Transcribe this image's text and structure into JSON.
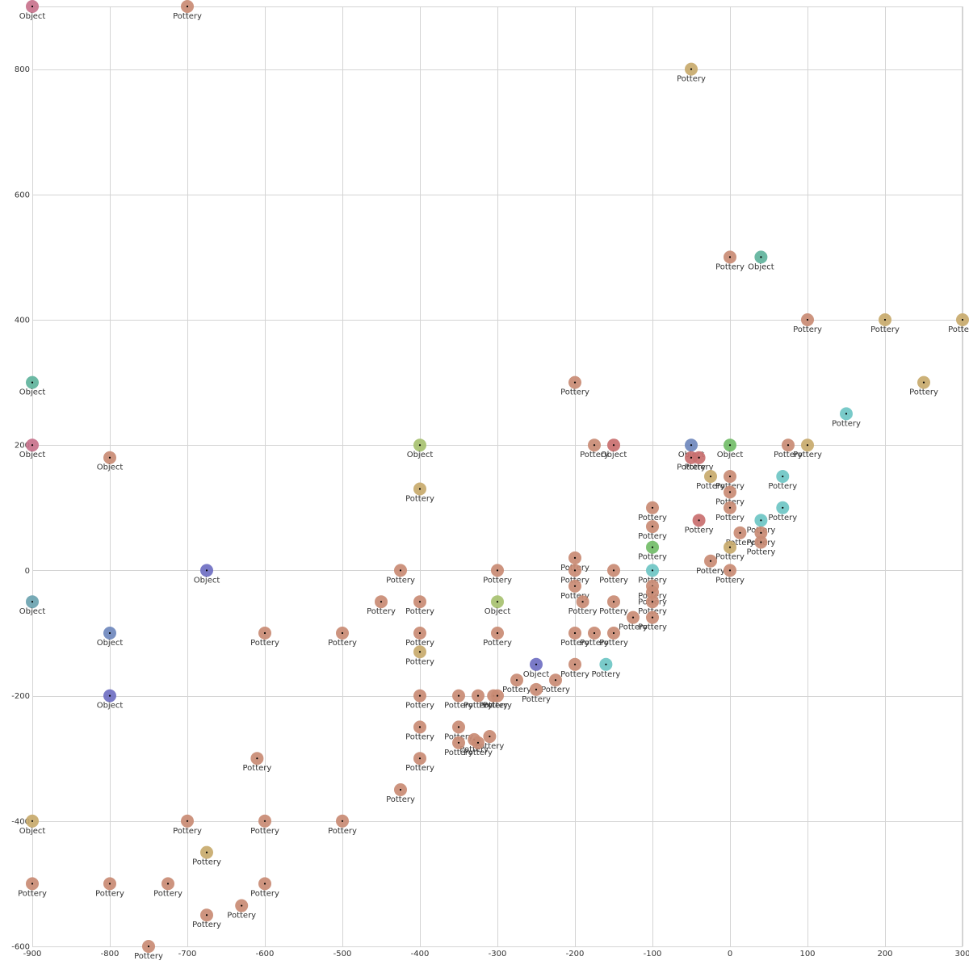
{
  "chart_data": {
    "type": "scatter",
    "title": "",
    "xlabel": "",
    "ylabel": "",
    "xlim": [
      -900,
      300
    ],
    "ylim": [
      -600,
      900
    ],
    "grid": true,
    "x_ticks": [
      -900,
      -800,
      -700,
      -600,
      -500,
      -400,
      -300,
      -200,
      -100,
      0,
      100,
      200,
      300
    ],
    "y_ticks": [
      -600,
      -400,
      -200,
      0,
      200,
      400,
      600,
      800
    ],
    "colors": {
      "pottery_terracotta": "#c98b74",
      "pottery_ochre": "#c8aa6c",
      "pottery_red": "#c96f6f",
      "object_teal": "#5fb39c",
      "object_blue": "#6f88bd",
      "object_violet": "#6f6fc2",
      "object_rose": "#c8728c",
      "object_green": "#72bd68",
      "object_lime": "#a7c170",
      "object_cyan": "#6ec6c4"
    },
    "points": [
      {
        "x": -900,
        "y": 900,
        "label": "Object",
        "color": "#c8728c"
      },
      {
        "x": -700,
        "y": 900,
        "label": "Pottery",
        "color": "#c98b74"
      },
      {
        "x": -50,
        "y": 800,
        "label": "Pottery",
        "color": "#c8aa6c"
      },
      {
        "x": 0,
        "y": 500,
        "label": "Pottery",
        "color": "#c98b74"
      },
      {
        "x": 40,
        "y": 500,
        "label": "Object",
        "color": "#5fb39c"
      },
      {
        "x": 100,
        "y": 400,
        "label": "Pottery",
        "color": "#c98b74"
      },
      {
        "x": 200,
        "y": 400,
        "label": "Pottery",
        "color": "#c8aa6c"
      },
      {
        "x": 300,
        "y": 400,
        "label": "Pottery",
        "color": "#c8aa6c"
      },
      {
        "x": -900,
        "y": 300,
        "label": "Object",
        "color": "#5fb39c"
      },
      {
        "x": -200,
        "y": 300,
        "label": "Pottery",
        "color": "#c98b74"
      },
      {
        "x": 250,
        "y": 300,
        "label": "Pottery",
        "color": "#c8aa6c"
      },
      {
        "x": 150,
        "y": 250,
        "label": "Pottery",
        "color": "#6ec6c4"
      },
      {
        "x": -900,
        "y": 200,
        "label": "Object",
        "color": "#c8728c"
      },
      {
        "x": -800,
        "y": 180,
        "label": "Object",
        "color": "#c98b74"
      },
      {
        "x": -400,
        "y": 200,
        "label": "Object",
        "color": "#a7c170"
      },
      {
        "x": -175,
        "y": 200,
        "label": "Pottery",
        "color": "#c98b74"
      },
      {
        "x": -150,
        "y": 200,
        "label": "Object",
        "color": "#c96f6f"
      },
      {
        "x": -50,
        "y": 200,
        "label": "Object",
        "color": "#6f88bd"
      },
      {
        "x": -50,
        "y": 180,
        "label": "Pottery",
        "color": "#c96f6f"
      },
      {
        "x": -40,
        "y": 180,
        "label": "Pottery",
        "color": "#c96f6f"
      },
      {
        "x": 0,
        "y": 200,
        "label": "Object",
        "color": "#72bd68"
      },
      {
        "x": 75,
        "y": 200,
        "label": "Pottery",
        "color": "#c98b74"
      },
      {
        "x": 100,
        "y": 200,
        "label": "Pottery",
        "color": "#c8aa6c"
      },
      {
        "x": -400,
        "y": 130,
        "label": "Pottery",
        "color": "#c8aa6c"
      },
      {
        "x": -25,
        "y": 150,
        "label": "Pottery",
        "color": "#c8aa6c"
      },
      {
        "x": 0,
        "y": 150,
        "label": "Pottery",
        "color": "#c98b74"
      },
      {
        "x": 0,
        "y": 125,
        "label": "Pottery",
        "color": "#c98b74"
      },
      {
        "x": 0,
        "y": 100,
        "label": "Pottery",
        "color": "#c98b74"
      },
      {
        "x": 68,
        "y": 150,
        "label": "Pottery",
        "color": "#6ec6c4"
      },
      {
        "x": 68,
        "y": 100,
        "label": "Pottery",
        "color": "#6ec6c4"
      },
      {
        "x": -100,
        "y": 100,
        "label": "Pottery",
        "color": "#c98b74"
      },
      {
        "x": -100,
        "y": 70,
        "label": "Pottery",
        "color": "#c98b74"
      },
      {
        "x": -40,
        "y": 80,
        "label": "Pottery",
        "color": "#c96f6f"
      },
      {
        "x": 40,
        "y": 80,
        "label": "Pottery",
        "color": "#6ec6c4"
      },
      {
        "x": 13,
        "y": 60,
        "label": "Pottery",
        "color": "#c98b74"
      },
      {
        "x": 40,
        "y": 60,
        "label": "Pottery",
        "color": "#c98b74"
      },
      {
        "x": 40,
        "y": 45,
        "label": "Pottery",
        "color": "#c98b74"
      },
      {
        "x": -100,
        "y": 37,
        "label": "Pottery",
        "color": "#72bd68"
      },
      {
        "x": 0,
        "y": 37,
        "label": "Pottery",
        "color": "#c8aa6c"
      },
      {
        "x": -25,
        "y": 15,
        "label": "Pottery",
        "color": "#c98b74"
      },
      {
        "x": -200,
        "y": 20,
        "label": "Pottery",
        "color": "#c98b74"
      },
      {
        "x": -675,
        "y": 0,
        "label": "Object",
        "color": "#6f6fc2"
      },
      {
        "x": -425,
        "y": 0,
        "label": "Pottery",
        "color": "#c98b74"
      },
      {
        "x": -300,
        "y": 0,
        "label": "Pottery",
        "color": "#c98b74"
      },
      {
        "x": -200,
        "y": 0,
        "label": "Pottery",
        "color": "#c98b74"
      },
      {
        "x": -150,
        "y": 0,
        "label": "Pottery",
        "color": "#c98b74"
      },
      {
        "x": -100,
        "y": 0,
        "label": "Pottery",
        "color": "#6ec6c4"
      },
      {
        "x": 0,
        "y": 0,
        "label": "Pottery",
        "color": "#c98b74"
      },
      {
        "x": -200,
        "y": -25,
        "label": "Pottery",
        "color": "#c98b74"
      },
      {
        "x": -100,
        "y": -25,
        "label": "Pottery",
        "color": "#c98b74"
      },
      {
        "x": -100,
        "y": -35,
        "label": "Pottery",
        "color": "#c98b74"
      },
      {
        "x": -900,
        "y": -50,
        "label": "Object",
        "color": "#6ba3b0"
      },
      {
        "x": -450,
        "y": -50,
        "label": "Pottery",
        "color": "#c98b74"
      },
      {
        "x": -400,
        "y": -50,
        "label": "Pottery",
        "color": "#c98b74"
      },
      {
        "x": -300,
        "y": -50,
        "label": "Object",
        "color": "#a7c170"
      },
      {
        "x": -190,
        "y": -50,
        "label": "Pottery",
        "color": "#c98b74"
      },
      {
        "x": -150,
        "y": -50,
        "label": "Pottery",
        "color": "#c98b74"
      },
      {
        "x": -100,
        "y": -50,
        "label": "Pottery",
        "color": "#c98b74"
      },
      {
        "x": -125,
        "y": -75,
        "label": "Pottery",
        "color": "#c98b74"
      },
      {
        "x": -100,
        "y": -75,
        "label": "Pottery",
        "color": "#c98b74"
      },
      {
        "x": -800,
        "y": -100,
        "label": "Object",
        "color": "#6f88bd"
      },
      {
        "x": -600,
        "y": -100,
        "label": "Pottery",
        "color": "#c98b74"
      },
      {
        "x": -500,
        "y": -100,
        "label": "Pottery",
        "color": "#c98b74"
      },
      {
        "x": -400,
        "y": -100,
        "label": "Pottery",
        "color": "#c98b74"
      },
      {
        "x": -300,
        "y": -100,
        "label": "Pottery",
        "color": "#c98b74"
      },
      {
        "x": -200,
        "y": -100,
        "label": "Pottery",
        "color": "#c98b74"
      },
      {
        "x": -175,
        "y": -100,
        "label": "Pottery",
        "color": "#c98b74"
      },
      {
        "x": -150,
        "y": -100,
        "label": "Pottery",
        "color": "#c98b74"
      },
      {
        "x": -400,
        "y": -130,
        "label": "Pottery",
        "color": "#c8aa6c"
      },
      {
        "x": -250,
        "y": -150,
        "label": "Object",
        "color": "#6f6fc2"
      },
      {
        "x": -200,
        "y": -150,
        "label": "Pottery",
        "color": "#c98b74"
      },
      {
        "x": -160,
        "y": -150,
        "label": "Pottery",
        "color": "#6ec6c4"
      },
      {
        "x": -275,
        "y": -175,
        "label": "Pottery",
        "color": "#c98b74"
      },
      {
        "x": -225,
        "y": -175,
        "label": "Pottery",
        "color": "#c98b74"
      },
      {
        "x": -250,
        "y": -190,
        "label": "Pottery",
        "color": "#c98b74"
      },
      {
        "x": -800,
        "y": -200,
        "label": "Object",
        "color": "#6f6fc2"
      },
      {
        "x": -400,
        "y": -200,
        "label": "Pottery",
        "color": "#c98b74"
      },
      {
        "x": -350,
        "y": -200,
        "label": "Pottery",
        "color": "#c98b74"
      },
      {
        "x": -325,
        "y": -200,
        "label": "Pottery",
        "color": "#c98b74"
      },
      {
        "x": -305,
        "y": -200,
        "label": "Pottery",
        "color": "#c98b74"
      },
      {
        "x": -300,
        "y": -200,
        "label": "Pottery",
        "color": "#c98b74"
      },
      {
        "x": -400,
        "y": -250,
        "label": "Pottery",
        "color": "#c98b74"
      },
      {
        "x": -350,
        "y": -250,
        "label": "Pottery",
        "color": "#c98b74"
      },
      {
        "x": -330,
        "y": -270,
        "label": "Pottery",
        "color": "#c98b74"
      },
      {
        "x": -310,
        "y": -265,
        "label": "Pottery",
        "color": "#c98b74"
      },
      {
        "x": -350,
        "y": -275,
        "label": "Pottery",
        "color": "#c98b74"
      },
      {
        "x": -325,
        "y": -275,
        "label": "Pottery",
        "color": "#c98b74"
      },
      {
        "x": -610,
        "y": -300,
        "label": "Pottery",
        "color": "#c98b74"
      },
      {
        "x": -400,
        "y": -300,
        "label": "Pottery",
        "color": "#c98b74"
      },
      {
        "x": -425,
        "y": -350,
        "label": "Pottery",
        "color": "#c98b74"
      },
      {
        "x": -900,
        "y": -400,
        "label": "Object",
        "color": "#c8aa6c"
      },
      {
        "x": -700,
        "y": -400,
        "label": "Pottery",
        "color": "#c98b74"
      },
      {
        "x": -600,
        "y": -400,
        "label": "Pottery",
        "color": "#c98b74"
      },
      {
        "x": -500,
        "y": -400,
        "label": "Pottery",
        "color": "#c98b74"
      },
      {
        "x": -675,
        "y": -450,
        "label": "Pottery",
        "color": "#c8aa6c"
      },
      {
        "x": -900,
        "y": -500,
        "label": "Pottery",
        "color": "#c98b74"
      },
      {
        "x": -800,
        "y": -500,
        "label": "Pottery",
        "color": "#c98b74"
      },
      {
        "x": -725,
        "y": -500,
        "label": "Pottery",
        "color": "#c98b74"
      },
      {
        "x": -600,
        "y": -500,
        "label": "Pottery",
        "color": "#c98b74"
      },
      {
        "x": -630,
        "y": -535,
        "label": "Pottery",
        "color": "#c98b74"
      },
      {
        "x": -675,
        "y": -550,
        "label": "Pottery",
        "color": "#c98b74"
      },
      {
        "x": -750,
        "y": -600,
        "label": "Pottery",
        "color": "#c98b74"
      }
    ]
  }
}
